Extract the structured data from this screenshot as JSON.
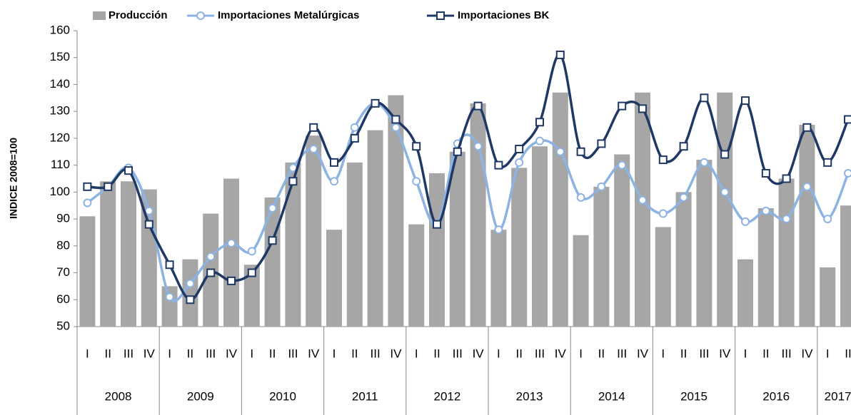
{
  "chart_data": {
    "type": "bar_line",
    "y_label": "INDICE 2008=100",
    "categories": [
      "I",
      "II",
      "III",
      "IV",
      "I",
      "II",
      "III",
      "IV",
      "I",
      "II",
      "III",
      "IV",
      "I",
      "II",
      "III",
      "IV",
      "I",
      "II",
      "III",
      "IV",
      "I",
      "II",
      "III",
      "IV",
      "I",
      "II",
      "III",
      "IV",
      "I",
      "II",
      "III",
      "IV",
      "I",
      "II",
      "III",
      "IV",
      "I",
      "II"
    ],
    "years": [
      "2008",
      "2009",
      "2010",
      "2011",
      "2012",
      "2013",
      "2014",
      "2015",
      "2016",
      "2017"
    ],
    "series": [
      {
        "name": "Producción",
        "kind": "bar",
        "color": "#a6a6a6",
        "values": [
          91,
          104,
          104,
          101,
          65,
          75,
          92,
          105,
          73,
          98,
          111,
          121,
          86,
          111,
          123,
          136,
          88,
          107,
          115,
          133,
          86,
          109,
          117,
          137,
          84,
          102,
          114,
          137,
          87,
          100,
          112,
          137,
          75,
          94,
          105,
          125,
          72,
          95
        ]
      },
      {
        "name": "Importaciones Metalúrgicas",
        "kind": "line",
        "marker": "circle",
        "color": "#8db3e2",
        "values": [
          96,
          102,
          109,
          93,
          61,
          66,
          76,
          81,
          78,
          94,
          109,
          116,
          104,
          124,
          133,
          124,
          104,
          88,
          118,
          117,
          86,
          111,
          119,
          115,
          98,
          102,
          110,
          97,
          92,
          98,
          111,
          100,
          89,
          93,
          90,
          102,
          90,
          107
        ]
      },
      {
        "name": "Importaciones BK",
        "kind": "line",
        "marker": "square",
        "color": "#1f3864",
        "values": [
          102,
          102,
          108,
          88,
          73,
          60,
          70,
          67,
          70,
          82,
          104,
          124,
          111,
          120,
          133,
          127,
          117,
          88,
          115,
          132,
          110,
          116,
          126,
          151,
          115,
          118,
          132,
          131,
          112,
          117,
          135,
          114,
          134,
          107,
          105,
          124,
          111,
          127
        ]
      }
    ],
    "ylim": [
      50,
      160
    ],
    "yticks": [
      50,
      60,
      70,
      80,
      90,
      100,
      110,
      120,
      130,
      140,
      150,
      160
    ],
    "grid": false
  }
}
